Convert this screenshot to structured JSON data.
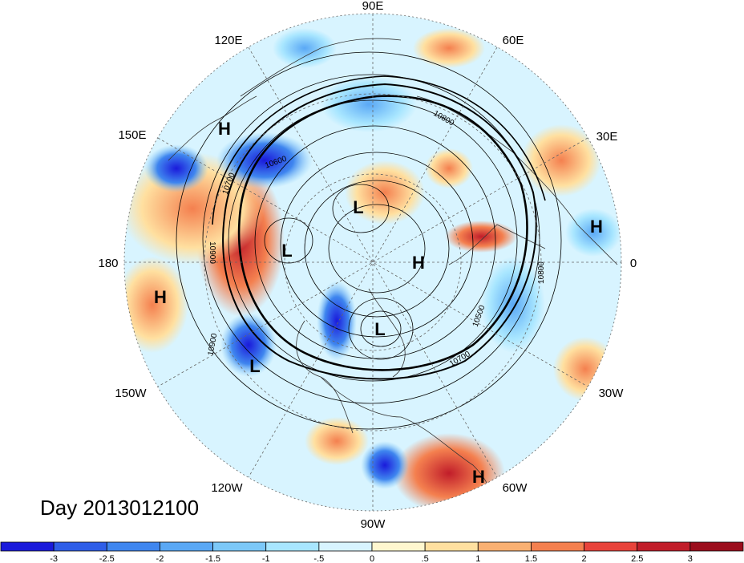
{
  "map": {
    "longitude_labels": [
      "90E",
      "60E",
      "30E",
      "0",
      "30W",
      "60W",
      "90W",
      "120W",
      "150W",
      "180",
      "150E",
      "120E"
    ],
    "highs": [
      "H",
      "H",
      "H",
      "H",
      "H"
    ],
    "lows": [
      "L",
      "L",
      "L",
      "L"
    ],
    "contour_labels": [
      "10900",
      "10800",
      "10700",
      "10500",
      "10800",
      "10900",
      "10600",
      "10700"
    ],
    "colors": {
      "ocean_base": "#cfefff",
      "contour": "#000000",
      "graticule": "#666666"
    }
  },
  "title": {
    "day": "Day 2013012100"
  },
  "colorbar": {
    "ticks": [
      "-3",
      "-2.5",
      "-2",
      "-1.5",
      "-1",
      "-.5",
      "0",
      ".5",
      "1",
      "1.5",
      "2",
      "2.5",
      "3"
    ],
    "colors": [
      "#1a1adb",
      "#2f5ee8",
      "#3f86ef",
      "#5aa8f5",
      "#7cc8f8",
      "#a8e6ff",
      "#d8f4ff",
      "#fff7cf",
      "#ffe0a0",
      "#f9b072",
      "#f4804f",
      "#e8433b",
      "#c11d2a",
      "#9b0d1c"
    ]
  }
}
